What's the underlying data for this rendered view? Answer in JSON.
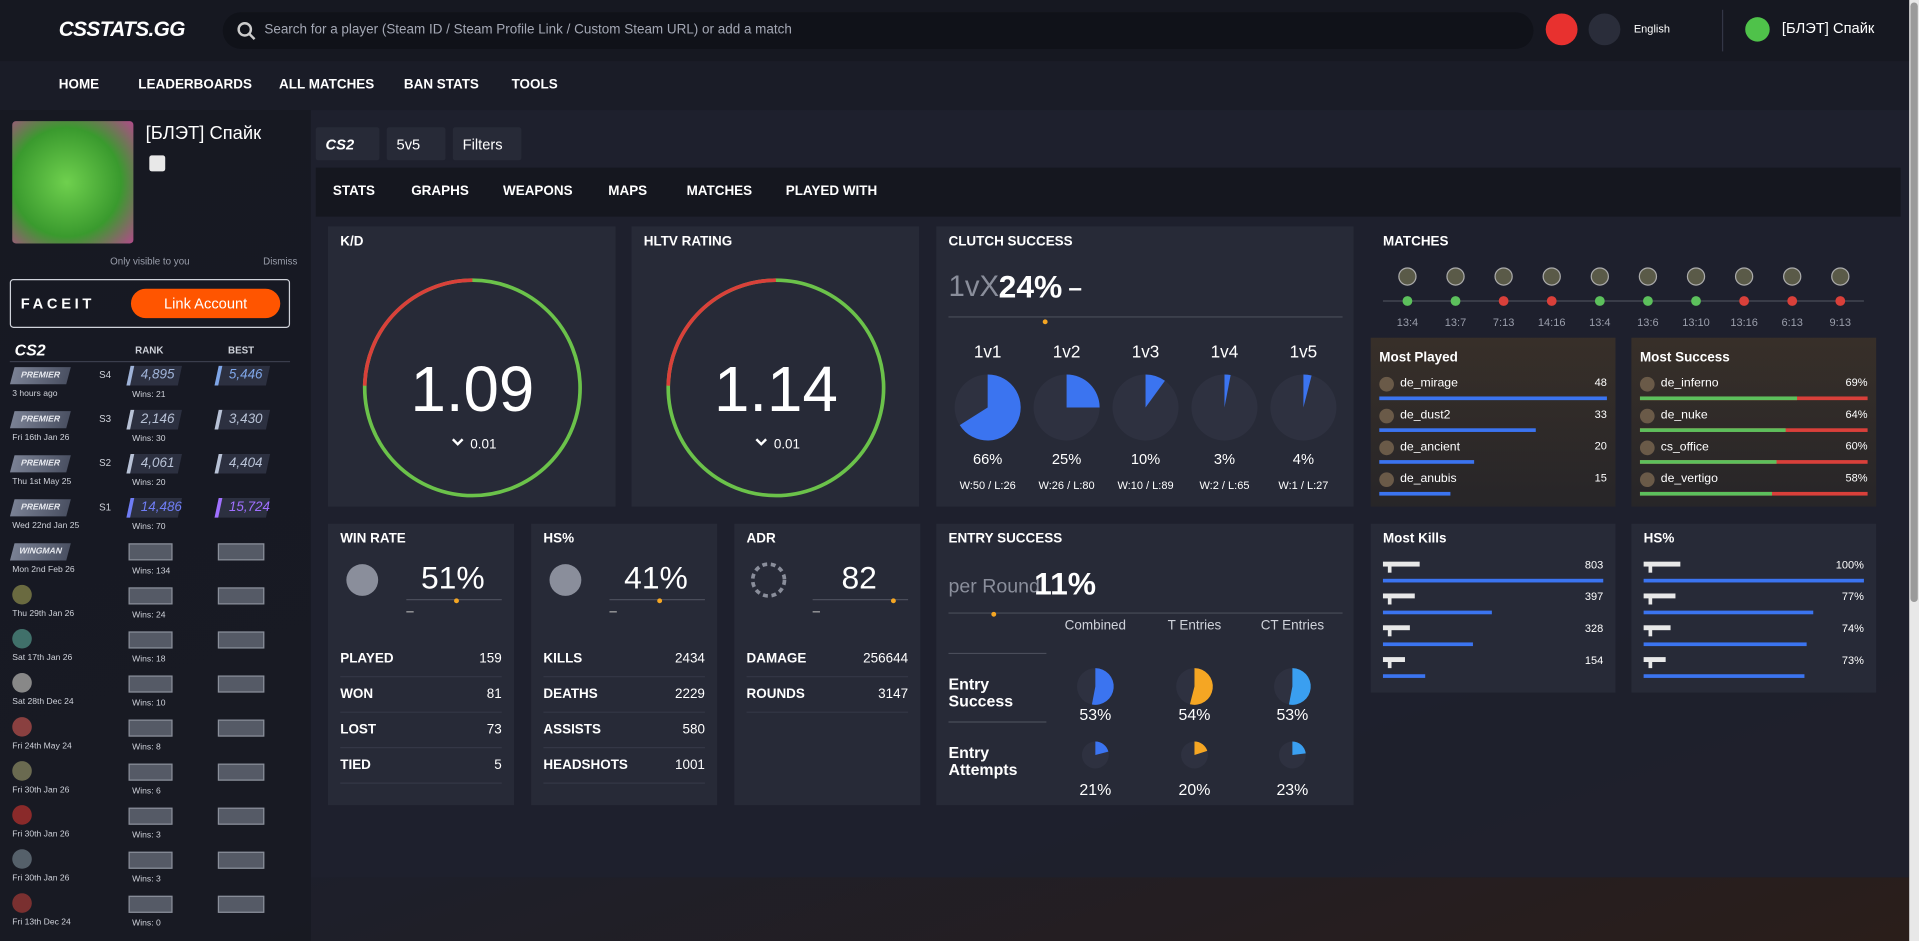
{
  "header": {
    "logo": "CSSTATS.GG",
    "search_placeholder": "Search for a player (Steam ID / Steam Profile Link / Custom Steam URL) or add a match",
    "language": "English",
    "user": "[БЛЭТ] Спайк"
  },
  "nav": [
    "HOME",
    "LEADERBOARDS",
    "ALL MATCHES",
    "BAN STATS",
    "TOOLS"
  ],
  "profile": {
    "name": "[БЛЭТ] Спайк",
    "visibility_note": "Only visible to you",
    "dismiss": "Dismiss",
    "faceit": "FACEIT",
    "link_button": "Link Account"
  },
  "ranks": {
    "game": "CS2",
    "columns": [
      "RANK",
      "BEST"
    ],
    "rows": [
      {
        "mode": "PREMIER",
        "season": "S4",
        "date": "3 hours ago",
        "rank": "4,895",
        "wins": "Wins: 21",
        "best": "5,446",
        "rank_color": "#9fb3d8",
        "best_color": "#7fa6e8"
      },
      {
        "mode": "PREMIER",
        "season": "S3",
        "date": "Fri 16th Jan 26",
        "rank": "2,146",
        "wins": "Wins: 30",
        "best": "3,430",
        "rank_color": "#b8c2d6",
        "best_color": "#b8c2d6"
      },
      {
        "mode": "PREMIER",
        "season": "S2",
        "date": "Thu 1st May 25",
        "rank": "4,061",
        "wins": "Wins: 20",
        "best": "4,404",
        "rank_color": "#b8c2d6",
        "best_color": "#b8c2d6"
      },
      {
        "mode": "PREMIER",
        "season": "S1",
        "date": "Wed 22nd Jan 25",
        "rank": "14,486",
        "wins": "Wins: 70",
        "best": "15,724",
        "rank_color": "#6f7df5",
        "best_color": "#a070ff"
      },
      {
        "mode": "WINGMAN",
        "date": "Mon 2nd Feb 26",
        "wins": "Wins: 134"
      },
      {
        "date": "Thu 29th Jan 26",
        "wins": "Wins: 24"
      },
      {
        "date": "Sat 17th Jan 26",
        "wins": "Wins: 18"
      },
      {
        "date": "Sat 28th Dec 24",
        "wins": "Wins: 10"
      },
      {
        "date": "Fri 24th May 24",
        "wins": "Wins: 8"
      },
      {
        "date": "Fri 30th Jan 26",
        "wins": "Wins: 6"
      },
      {
        "date": "Fri 30th Jan 26",
        "wins": "Wins: 3"
      },
      {
        "date": "Fri 30th Jan 26",
        "wins": "Wins: 3"
      },
      {
        "date": "Fri 13th Dec 24",
        "wins": "Wins: 0"
      }
    ]
  },
  "filters": {
    "game": "CS2",
    "mode": "5v5",
    "filters": "Filters"
  },
  "tabs": [
    "STATS",
    "GRAPHS",
    "WEAPONS",
    "MAPS",
    "MATCHES",
    "PLAYED WITH"
  ],
  "kd": {
    "title": "K/D",
    "value": "1.09",
    "change": "0.01"
  },
  "hltv": {
    "title": "HLTV RATING",
    "value": "1.14",
    "change": "0.01"
  },
  "clutch": {
    "title": "CLUTCH SUCCESS",
    "prefix": "1vX",
    "value": "24%",
    "trend": "–",
    "items": [
      {
        "label": "1v1",
        "value": 66,
        "value_label": "66%",
        "record": "W:50 / L:26"
      },
      {
        "label": "1v2",
        "value": 25,
        "value_label": "25%",
        "record": "W:26 / L:80"
      },
      {
        "label": "1v3",
        "value": 10,
        "value_label": "10%",
        "record": "W:10 / L:89"
      },
      {
        "label": "1v4",
        "value": 3,
        "value_label": "3%",
        "record": "W:2 / L:65"
      },
      {
        "label": "1v5",
        "value": 4,
        "value_label": "4%",
        "record": "W:1 / L:27"
      }
    ]
  },
  "win_rate": {
    "title": "WIN RATE",
    "value": "51%",
    "rows": [
      [
        "PLAYED",
        "159"
      ],
      [
        "WON",
        "81"
      ],
      [
        "LOST",
        "73"
      ],
      [
        "TIED",
        "5"
      ]
    ]
  },
  "hs": {
    "title": "HS%",
    "value": "41%",
    "rows": [
      [
        "KILLS",
        "2434"
      ],
      [
        "DEATHS",
        "2229"
      ],
      [
        "ASSISTS",
        "580"
      ],
      [
        "HEADSHOTS",
        "1001"
      ]
    ]
  },
  "adr": {
    "title": "ADR",
    "value": "82",
    "rows": [
      [
        "DAMAGE",
        "256644"
      ],
      [
        "ROUNDS",
        "3147"
      ]
    ]
  },
  "entry": {
    "title": "ENTRY SUCCESS",
    "prefix": "per Round",
    "value": "11%",
    "columns": [
      {
        "name": "Combined",
        "color": "#3b74f0"
      },
      {
        "name": "T Entries",
        "color": "#f5a623"
      },
      {
        "name": "CT Entries",
        "color": "#3a9ff0"
      }
    ],
    "rows": [
      {
        "label": "Entry Success",
        "values": [
          53,
          54,
          53
        ],
        "value_labels": [
          "53%",
          "54%",
          "53%"
        ]
      },
      {
        "label": "Entry Attempts",
        "values": [
          21,
          20,
          23
        ],
        "value_labels": [
          "21%",
          "20%",
          "23%"
        ]
      }
    ]
  },
  "matches": {
    "title": "MATCHES",
    "items": [
      {
        "score": "13:4",
        "color": "#5cc05c"
      },
      {
        "score": "13:7",
        "color": "#5cc05c"
      },
      {
        "score": "7:13",
        "color": "#d9403a"
      },
      {
        "score": "14:16",
        "color": "#d9403a"
      },
      {
        "score": "13:4",
        "color": "#5cc05c"
      },
      {
        "score": "13:6",
        "color": "#5cc05c"
      },
      {
        "score": "13:10",
        "color": "#5cc05c"
      },
      {
        "score": "13:16",
        "color": "#d9403a"
      },
      {
        "score": "6:13",
        "color": "#d9403a"
      },
      {
        "score": "9:13",
        "color": "#d9403a"
      }
    ]
  },
  "most_played": {
    "title": "Most Played",
    "rows": [
      {
        "map": "de_mirage",
        "value": 48
      },
      {
        "map": "de_dust2",
        "value": 33
      },
      {
        "map": "de_ancient",
        "value": 20
      },
      {
        "map": "de_anubis",
        "value": 15
      }
    ]
  },
  "most_success": {
    "title": "Most Success",
    "rows": [
      {
        "map": "de_inferno",
        "value": 69,
        "value_label": "69%"
      },
      {
        "map": "de_nuke",
        "value": 64,
        "value_label": "64%"
      },
      {
        "map": "cs_office",
        "value": 60,
        "value_label": "60%"
      },
      {
        "map": "de_vertigo",
        "value": 58,
        "value_label": "58%"
      }
    ]
  },
  "most_kills": {
    "title": "Most Kills",
    "rows": [
      {
        "value": 803
      },
      {
        "value": 397
      },
      {
        "value": 328
      },
      {
        "value": 154
      }
    ]
  },
  "hs_weapons": {
    "title": "HS%",
    "rows": [
      {
        "value": 100,
        "value_label": "100%"
      },
      {
        "value": 77,
        "value_label": "77%"
      },
      {
        "value": 74,
        "value_label": "74%"
      },
      {
        "value": 73,
        "value_label": "73%"
      }
    ]
  }
}
